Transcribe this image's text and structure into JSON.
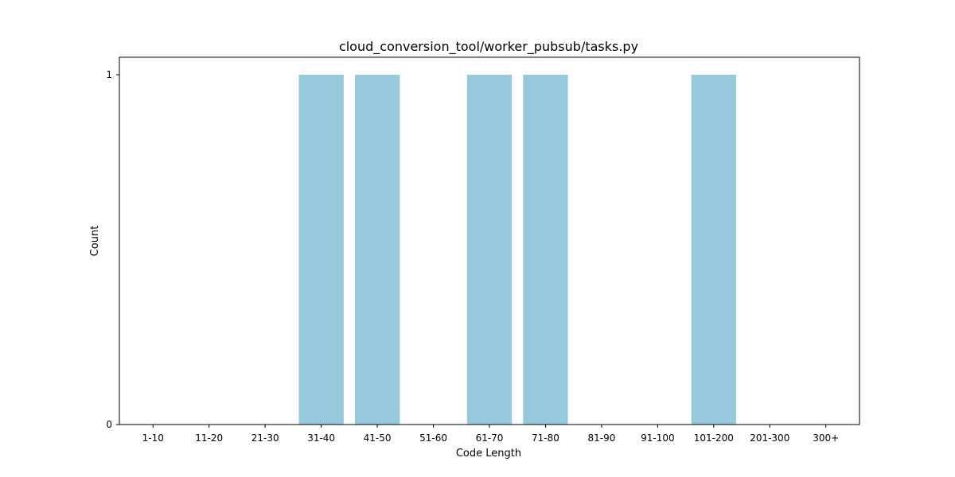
{
  "chart_data": {
    "type": "bar",
    "title": "cloud_conversion_tool/worker_pubsub/tasks.py",
    "xlabel": "Code Length",
    "ylabel": "Count",
    "categories": [
      "1-10",
      "11-20",
      "21-30",
      "31-40",
      "41-50",
      "51-60",
      "61-70",
      "71-80",
      "81-90",
      "91-100",
      "101-200",
      "201-300",
      "300+"
    ],
    "values": [
      0,
      0,
      0,
      1,
      1,
      0,
      1,
      1,
      0,
      0,
      1,
      0,
      0
    ],
    "ylim": [
      0,
      1.05
    ],
    "yticks": [
      "0",
      "1"
    ],
    "bar_color": "#96c9dc",
    "grid": false,
    "legend": "none"
  }
}
